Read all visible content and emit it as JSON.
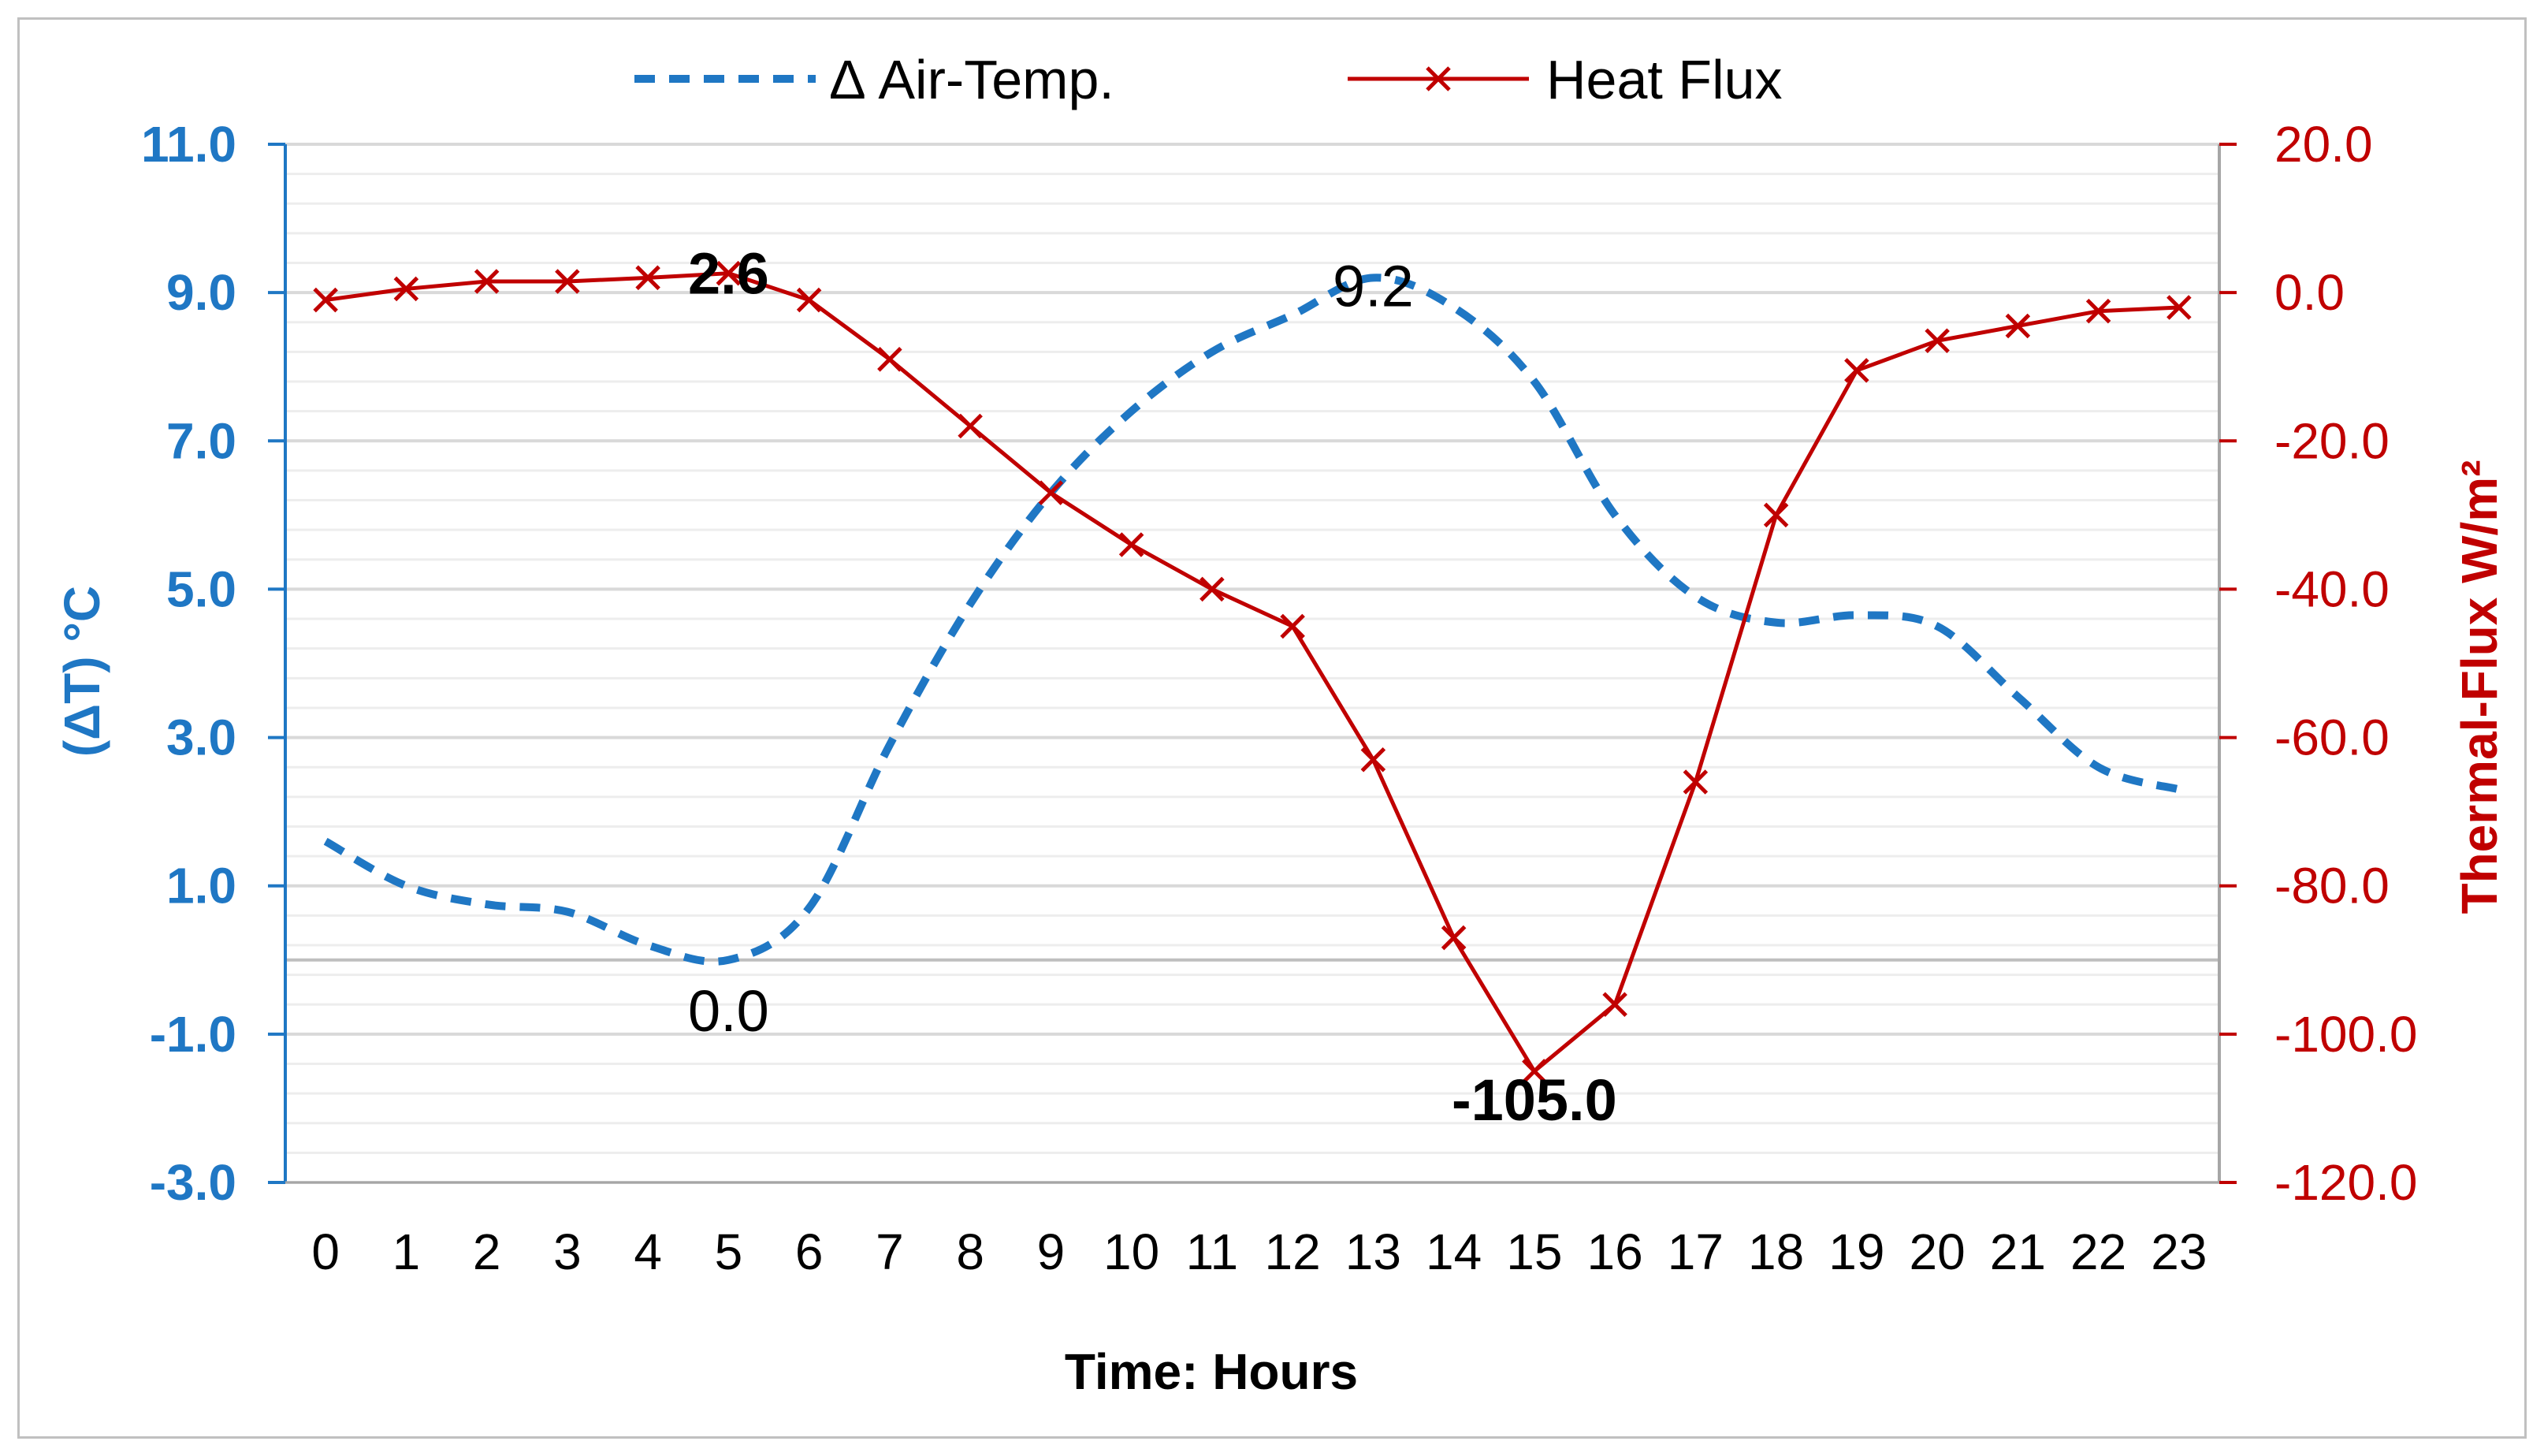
{
  "chart_data": {
    "type": "line",
    "x": [
      0,
      1,
      2,
      3,
      4,
      5,
      6,
      7,
      8,
      9,
      10,
      11,
      12,
      13,
      14,
      15,
      16,
      17,
      18,
      19,
      20,
      21,
      22,
      23
    ],
    "xlabel": "Time: Hours",
    "ylabel_left": "(ΔT) °C",
    "ylabel_right": "Thermal-Flux W/m²",
    "ylim_left": [
      -3.0,
      11.0
    ],
    "ylim_right": [
      -120.0,
      20.0
    ],
    "yticks_left": [
      "11.0",
      "9.0",
      "7.0",
      "5.0",
      "3.0",
      "1.0",
      "-1.0",
      "-3.0"
    ],
    "yticks_right": [
      "20.0",
      "0.0",
      "-20.0",
      "-40.0",
      "-60.0",
      "-80.0",
      "-100.0",
      "-120.0"
    ],
    "legend_position": "top-center",
    "colors": {
      "left_axis": "#1F77C4",
      "right_axis": "#C00000",
      "grid": "#D9D9D9",
      "grid_minor": "#EDEDED"
    },
    "series": [
      {
        "name": "Δ Air-Temp.",
        "axis": "left",
        "style": "dashed",
        "color": "#1F77C4",
        "values": [
          1.6,
          1.0,
          0.75,
          0.65,
          0.2,
          0.0,
          0.7,
          2.9,
          4.8,
          6.3,
          7.4,
          8.2,
          8.7,
          9.2,
          8.8,
          7.8,
          6.0,
          4.9,
          4.55,
          4.65,
          4.5,
          3.55,
          2.6,
          2.3
        ],
        "annotations": [
          {
            "x": 5,
            "label": "0.0",
            "bold": false
          },
          {
            "x": 13,
            "label": "9.2",
            "bold": false
          }
        ]
      },
      {
        "name": "Heat Flux",
        "axis": "right",
        "style": "solid-x-markers",
        "color": "#C00000",
        "values": [
          -1.0,
          0.5,
          1.5,
          1.5,
          2.0,
          2.6,
          -1.0,
          -9.0,
          -18.0,
          -27.0,
          -34.0,
          -40.0,
          -45.0,
          -63.0,
          -87.0,
          -105.0,
          -96.0,
          -66.0,
          -30.0,
          -10.5,
          -6.5,
          -4.5,
          -2.5,
          -2.0
        ],
        "annotations": [
          {
            "x": 5,
            "label": "2.6",
            "bold": true
          },
          {
            "x": 15,
            "label": "-105.0",
            "bold": true
          }
        ]
      }
    ]
  }
}
